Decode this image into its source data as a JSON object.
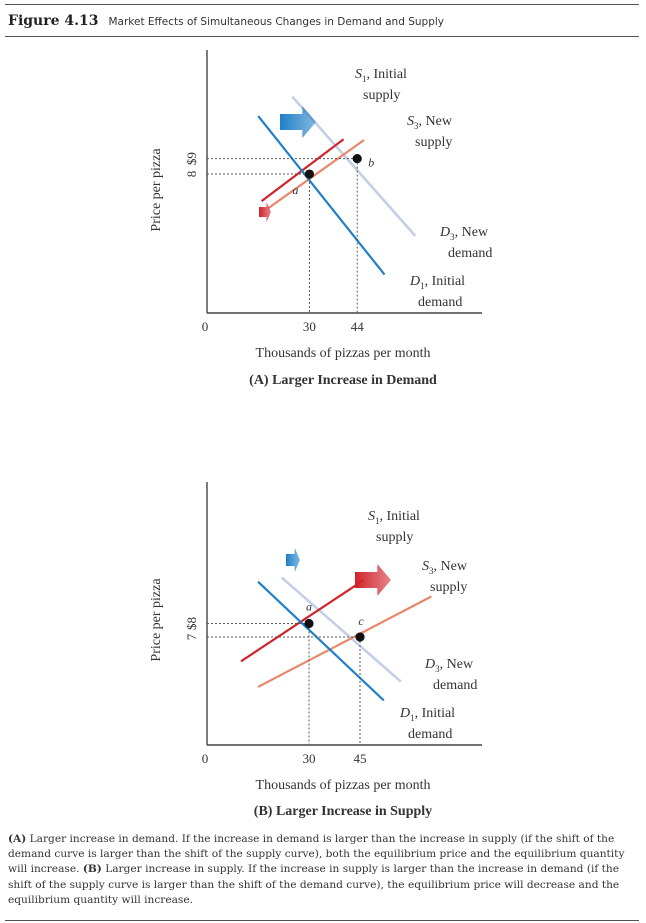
{
  "figure": {
    "number": "Figure 4.13",
    "title": "Market Effects of Simultaneous Changes in Demand and Supply"
  },
  "colors": {
    "s1": "#d0242c",
    "s3": "#e8876a",
    "d1": "#1f7fc8",
    "d3": "#c4cfe6",
    "guide": "#555555",
    "point": "#111111"
  },
  "chart_data": [
    {
      "type": "line",
      "title": "(A) Larger Increase in Demand",
      "xlabel": "Thousands of pizzas per month",
      "ylabel": "Price per pizza",
      "origin_label": "0",
      "x_ticks": [
        {
          "value": 30,
          "label": "30"
        },
        {
          "value": 44,
          "label": "44"
        }
      ],
      "y_ticks": [
        {
          "value": 9,
          "label": "$9"
        },
        {
          "value": 8,
          "label": "8"
        }
      ],
      "series": [
        {
          "key": "s1",
          "kind": "supply",
          "points": [
            [
              16,
              6.25
            ],
            [
              40,
              10.25
            ]
          ],
          "label_prefix": "S",
          "label_sub": "1",
          "label_suffix": ", Initial",
          "label_line2": "supply"
        },
        {
          "key": "s3",
          "kind": "supply",
          "points": [
            [
              18,
              5.8
            ],
            [
              46,
              10.2
            ]
          ],
          "label_prefix": "S",
          "label_sub": "3",
          "label_suffix": ", New",
          "label_line2": "supply"
        },
        {
          "key": "d3",
          "kind": "demand",
          "points": [
            [
              25,
              13.0
            ],
            [
              61,
              4.0
            ]
          ],
          "label_prefix": "D",
          "label_sub": "3",
          "label_suffix": ", New",
          "label_line2": "demand"
        },
        {
          "key": "d1",
          "kind": "demand",
          "points": [
            [
              15,
              11.75
            ],
            [
              52,
              1.5
            ]
          ],
          "label_prefix": "D",
          "label_sub": "1",
          "label_suffix": ", Initial",
          "label_line2": "demand"
        }
      ],
      "equilibria": [
        {
          "x": 30,
          "y": 8,
          "label": "a"
        },
        {
          "x": 44,
          "y": 9,
          "label": "b"
        }
      ],
      "shift_arrows": [
        {
          "color_key": "d1",
          "size": "large",
          "direction": "right"
        },
        {
          "color_key": "s1",
          "size": "small",
          "direction": "right"
        }
      ]
    },
    {
      "type": "line",
      "title": "(B) Larger Increase in Supply",
      "xlabel": "Thousands of pizzas per month",
      "ylabel": "Price per pizza",
      "origin_label": "0",
      "x_ticks": [
        {
          "value": 30,
          "label": "30"
        },
        {
          "value": 45,
          "label": "45"
        }
      ],
      "y_ticks": [
        {
          "value": 8,
          "label": "$8"
        },
        {
          "value": 7,
          "label": "7"
        }
      ],
      "series": [
        {
          "key": "s1",
          "kind": "supply",
          "points": [
            [
              10,
              5.2
            ],
            [
              46,
              11.2
            ]
          ],
          "label_prefix": "S",
          "label_sub": "1",
          "label_suffix": ", Initial",
          "label_line2": "supply"
        },
        {
          "key": "s3",
          "kind": "supply",
          "points": [
            [
              15,
              3.3
            ],
            [
              66,
              10.0
            ]
          ],
          "label_prefix": "S",
          "label_sub": "3",
          "label_suffix": ", New",
          "label_line2": "supply"
        },
        {
          "key": "d3",
          "kind": "demand",
          "points": [
            [
              22,
              11.4
            ],
            [
              57,
              3.7
            ]
          ],
          "label_prefix": "D",
          "label_sub": "3",
          "label_suffix": ", New",
          "label_line2": "demand"
        },
        {
          "key": "d1",
          "kind": "demand",
          "points": [
            [
              15,
              11.1
            ],
            [
              52,
              2.3
            ]
          ],
          "label_prefix": "D",
          "label_sub": "1",
          "label_suffix": ", Initial",
          "label_line2": "demand"
        }
      ],
      "equilibria": [
        {
          "x": 30,
          "y": 8,
          "label": "a"
        },
        {
          "x": 45,
          "y": 7,
          "label": "c"
        }
      ],
      "shift_arrows": [
        {
          "color_key": "d1",
          "size": "small",
          "direction": "right"
        },
        {
          "color_key": "s1",
          "size": "large",
          "direction": "right"
        }
      ]
    }
  ],
  "caption": {
    "a_label": "(A)",
    "a_text": " Larger increase in demand. If the increase in demand is larger than the increase in supply (if the shift of the demand curve is larger than the shift of the supply curve), both the equilibrium price and the equilibrium quantity will increase. ",
    "b_label": "(B)",
    "b_text": " Larger increase in supply. If the increase in supply is larger than the increase in demand (if the shift of the supply curve is larger than the shift of the demand curve), the equilibrium price will decrease and the equilibrium quantity will increase."
  }
}
